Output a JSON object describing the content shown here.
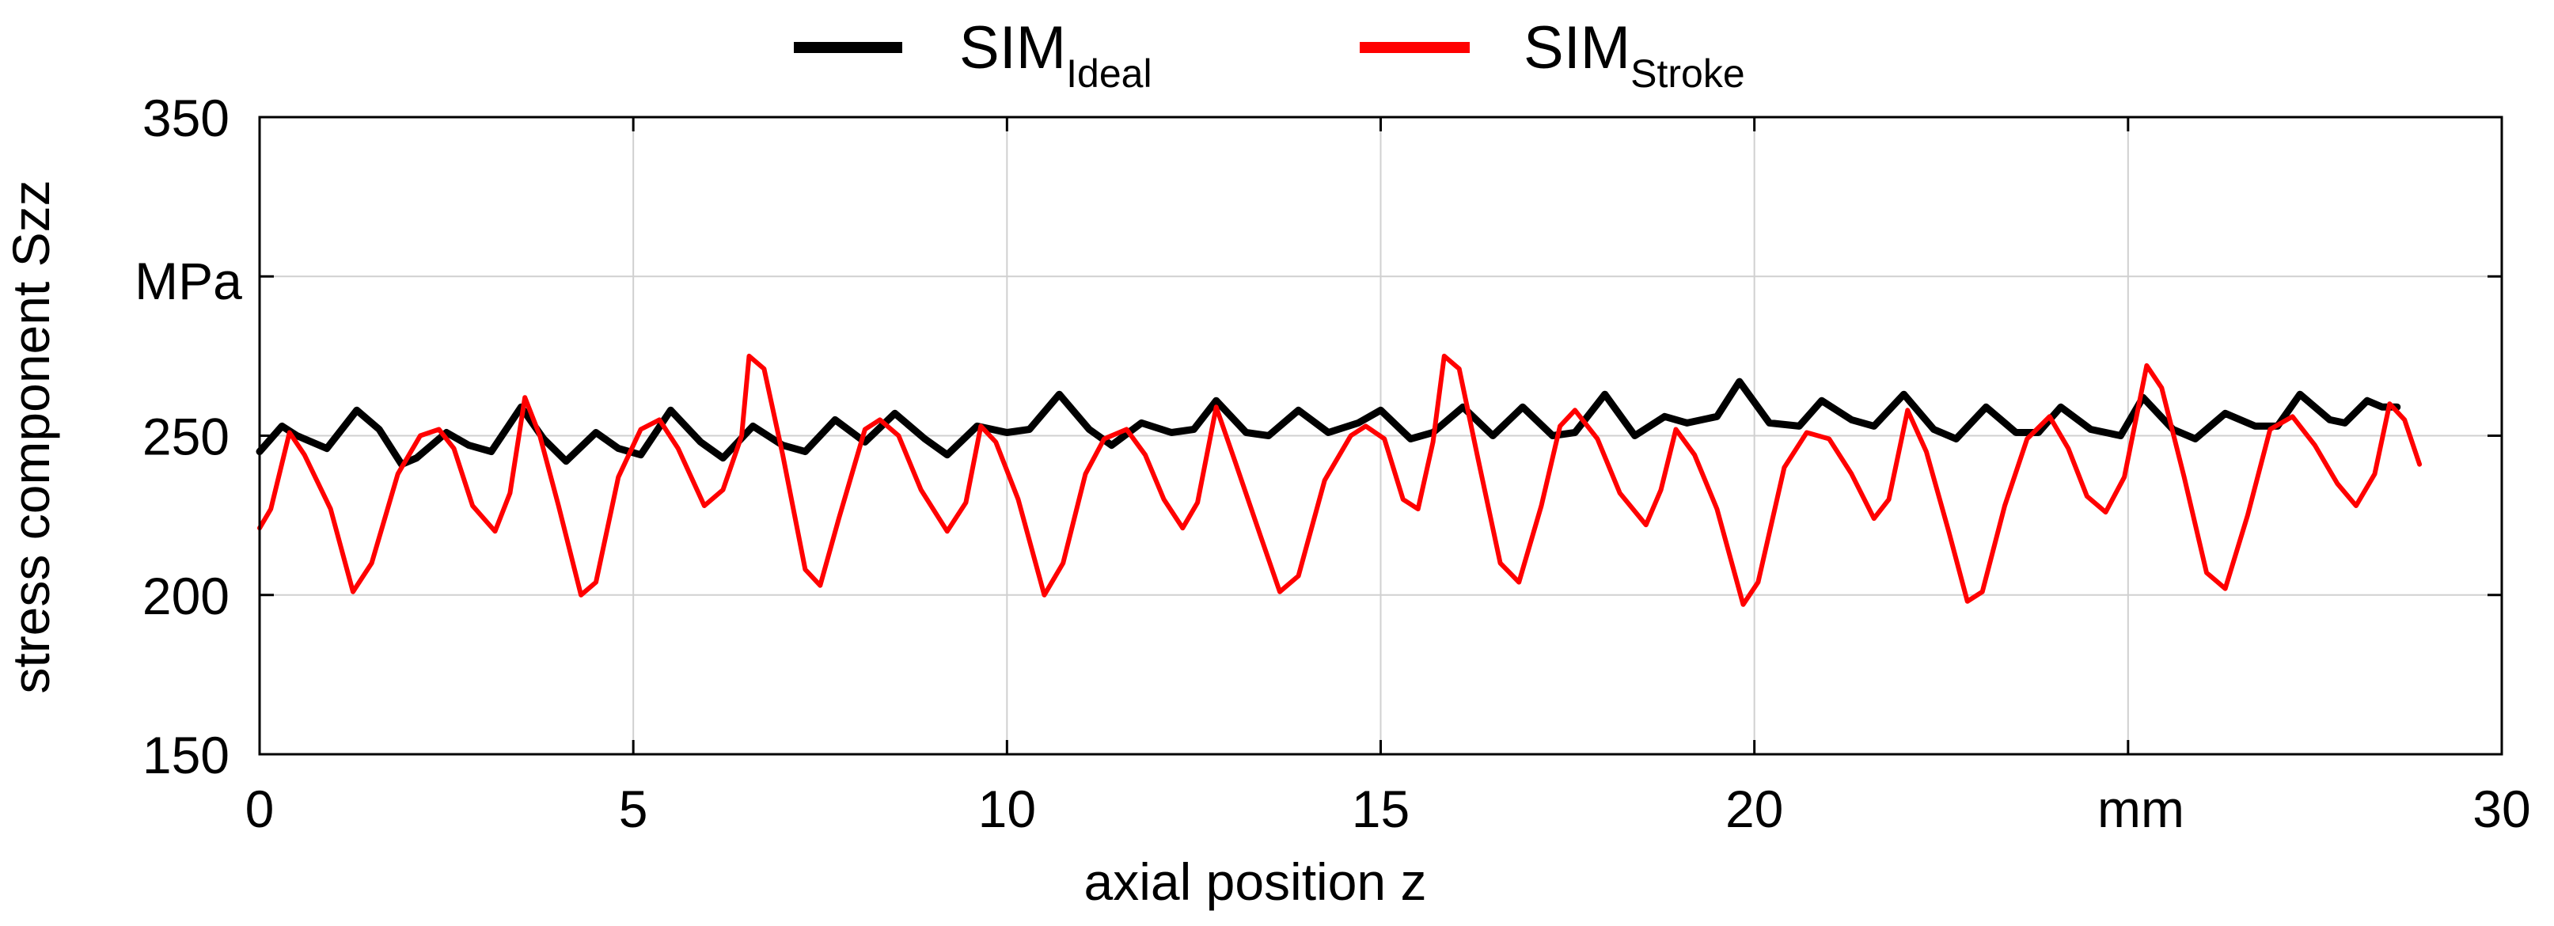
{
  "chart_data": {
    "type": "line",
    "xlabel": "axial position z",
    "ylabel": "stress component Szz",
    "x_unit": "mm",
    "y_unit": "MPa",
    "xlim": [
      0,
      30
    ],
    "ylim": [
      150,
      350
    ],
    "x_ticks": [
      "0",
      "5",
      "10",
      "15",
      "20",
      "",
      "30"
    ],
    "y_ticks": [
      "150",
      "200",
      "250",
      "",
      "350"
    ],
    "grid": true,
    "legend_position": "top-center",
    "series": [
      {
        "name_main": "SIM",
        "name_sub": "Ideal",
        "color": "#000000",
        "points": [
          [
            0.0,
            245
          ],
          [
            0.3,
            253
          ],
          [
            0.5,
            250
          ],
          [
            0.9,
            246
          ],
          [
            1.3,
            258
          ],
          [
            1.6,
            252
          ],
          [
            1.9,
            241
          ],
          [
            2.1,
            243
          ],
          [
            2.5,
            251
          ],
          [
            2.8,
            247
          ],
          [
            3.1,
            245
          ],
          [
            3.5,
            259
          ],
          [
            3.8,
            249
          ],
          [
            4.1,
            242
          ],
          [
            4.5,
            251
          ],
          [
            4.8,
            246
          ],
          [
            5.1,
            244
          ],
          [
            5.5,
            258
          ],
          [
            5.9,
            248
          ],
          [
            6.2,
            243
          ],
          [
            6.6,
            253
          ],
          [
            7.0,
            247
          ],
          [
            7.3,
            245
          ],
          [
            7.7,
            255
          ],
          [
            8.1,
            248
          ],
          [
            8.5,
            257
          ],
          [
            8.9,
            249
          ],
          [
            9.2,
            244
          ],
          [
            9.6,
            253
          ],
          [
            10.0,
            251
          ],
          [
            10.3,
            252
          ],
          [
            10.7,
            263
          ],
          [
            11.1,
            252
          ],
          [
            11.4,
            247
          ],
          [
            11.8,
            254
          ],
          [
            12.2,
            251
          ],
          [
            12.5,
            252
          ],
          [
            12.8,
            261
          ],
          [
            13.2,
            251
          ],
          [
            13.5,
            250
          ],
          [
            13.9,
            258
          ],
          [
            14.3,
            251
          ],
          [
            14.7,
            254
          ],
          [
            15.0,
            258
          ],
          [
            15.4,
            249
          ],
          [
            15.7,
            251
          ],
          [
            16.1,
            259
          ],
          [
            16.5,
            250
          ],
          [
            16.9,
            259
          ],
          [
            17.3,
            250
          ],
          [
            17.6,
            251
          ],
          [
            18.0,
            263
          ],
          [
            18.4,
            250
          ],
          [
            18.8,
            256
          ],
          [
            19.1,
            254
          ],
          [
            19.5,
            256
          ],
          [
            19.8,
            267
          ],
          [
            20.2,
            254
          ],
          [
            20.6,
            253
          ],
          [
            20.9,
            261
          ],
          [
            21.3,
            255
          ],
          [
            21.6,
            253
          ],
          [
            22.0,
            263
          ],
          [
            22.4,
            252
          ],
          [
            22.7,
            249
          ],
          [
            23.1,
            259
          ],
          [
            23.5,
            251
          ],
          [
            23.8,
            251
          ],
          [
            24.1,
            259
          ],
          [
            24.5,
            252
          ],
          [
            24.9,
            250
          ],
          [
            25.2,
            262
          ],
          [
            25.6,
            252
          ],
          [
            25.9,
            249
          ],
          [
            26.3,
            257
          ],
          [
            26.7,
            253
          ],
          [
            27.0,
            253
          ],
          [
            27.3,
            263
          ],
          [
            27.7,
            255
          ],
          [
            27.9,
            254
          ],
          [
            28.2,
            261
          ],
          [
            28.4,
            259
          ],
          [
            28.6,
            259
          ]
        ]
      },
      {
        "name_main": "SIM",
        "name_sub": "Stroke",
        "color": "#ff0000",
        "points": [
          [
            0.0,
            221
          ],
          [
            0.15,
            227
          ],
          [
            0.4,
            251
          ],
          [
            0.6,
            244
          ],
          [
            0.95,
            227
          ],
          [
            1.25,
            201
          ],
          [
            1.5,
            210
          ],
          [
            1.85,
            238
          ],
          [
            2.15,
            250
          ],
          [
            2.4,
            252
          ],
          [
            2.6,
            246
          ],
          [
            2.85,
            228
          ],
          [
            3.15,
            220
          ],
          [
            3.35,
            232
          ],
          [
            3.55,
            262
          ],
          [
            3.75,
            250
          ],
          [
            4.0,
            228
          ],
          [
            4.3,
            200
          ],
          [
            4.5,
            204
          ],
          [
            4.8,
            237
          ],
          [
            5.1,
            252
          ],
          [
            5.35,
            255
          ],
          [
            5.6,
            246
          ],
          [
            5.95,
            228
          ],
          [
            6.2,
            233
          ],
          [
            6.45,
            250
          ],
          [
            6.55,
            275
          ],
          [
            6.75,
            271
          ],
          [
            7.0,
            244
          ],
          [
            7.3,
            208
          ],
          [
            7.5,
            203
          ],
          [
            7.75,
            224
          ],
          [
            8.1,
            252
          ],
          [
            8.3,
            255
          ],
          [
            8.55,
            250
          ],
          [
            8.85,
            233
          ],
          [
            9.2,
            220
          ],
          [
            9.45,
            229
          ],
          [
            9.65,
            253
          ],
          [
            9.85,
            248
          ],
          [
            10.15,
            230
          ],
          [
            10.5,
            200
          ],
          [
            10.75,
            210
          ],
          [
            11.05,
            238
          ],
          [
            11.3,
            249
          ],
          [
            11.6,
            252
          ],
          [
            11.85,
            244
          ],
          [
            12.1,
            230
          ],
          [
            12.35,
            221
          ],
          [
            12.55,
            229
          ],
          [
            12.8,
            259
          ],
          [
            13.05,
            242
          ],
          [
            13.4,
            218
          ],
          [
            13.65,
            201
          ],
          [
            13.9,
            206
          ],
          [
            14.25,
            236
          ],
          [
            14.6,
            250
          ],
          [
            14.8,
            253
          ],
          [
            15.05,
            249
          ],
          [
            15.3,
            230
          ],
          [
            15.5,
            227
          ],
          [
            15.7,
            248
          ],
          [
            15.85,
            275
          ],
          [
            16.05,
            271
          ],
          [
            16.3,
            243
          ],
          [
            16.6,
            210
          ],
          [
            16.85,
            204
          ],
          [
            17.15,
            228
          ],
          [
            17.4,
            253
          ],
          [
            17.6,
            258
          ],
          [
            17.9,
            249
          ],
          [
            18.2,
            232
          ],
          [
            18.55,
            222
          ],
          [
            18.75,
            233
          ],
          [
            18.95,
            252
          ],
          [
            19.2,
            244
          ],
          [
            19.5,
            227
          ],
          [
            19.85,
            197
          ],
          [
            20.05,
            204
          ],
          [
            20.4,
            240
          ],
          [
            20.7,
            251
          ],
          [
            21.0,
            249
          ],
          [
            21.3,
            238
          ],
          [
            21.6,
            224
          ],
          [
            21.8,
            230
          ],
          [
            22.05,
            258
          ],
          [
            22.3,
            245
          ],
          [
            22.6,
            220
          ],
          [
            22.85,
            198
          ],
          [
            23.05,
            201
          ],
          [
            23.35,
            228
          ],
          [
            23.65,
            249
          ],
          [
            23.95,
            256
          ],
          [
            24.2,
            246
          ],
          [
            24.45,
            231
          ],
          [
            24.7,
            226
          ],
          [
            24.95,
            237
          ],
          [
            25.25,
            272
          ],
          [
            25.45,
            265
          ],
          [
            25.75,
            237
          ],
          [
            26.05,
            207
          ],
          [
            26.3,
            202
          ],
          [
            26.6,
            225
          ],
          [
            26.9,
            252
          ],
          [
            27.2,
            256
          ],
          [
            27.5,
            247
          ],
          [
            27.8,
            235
          ],
          [
            28.05,
            228
          ],
          [
            28.3,
            238
          ],
          [
            28.5,
            260
          ],
          [
            28.7,
            255
          ],
          [
            28.9,
            241
          ]
        ]
      }
    ]
  }
}
